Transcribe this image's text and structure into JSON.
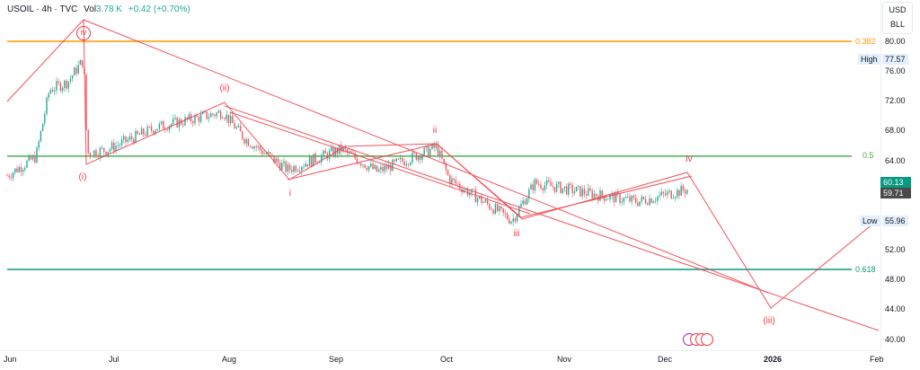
{
  "legend": {
    "symbol": "USOIL · 4h · TVC",
    "vol_label": "Vol",
    "vol_value": "3.78 K",
    "change": "+0.42 (+0.70%)"
  },
  "currency_box": {
    "currency": "USD",
    "unit": "BLL"
  },
  "price_axis": {
    "ticks": [
      "80.00",
      "76.00",
      "72.00",
      "68.00",
      "64.00",
      "52.00",
      "48.00",
      "44.00",
      "40.00"
    ],
    "high_label": "High",
    "high_value": "77.57",
    "low_label": "Low",
    "low_value": "55.96",
    "last_price": "60.13",
    "prev_price": "59.71"
  },
  "time_axis": {
    "ticks": [
      "Jun",
      "Jul",
      "Aug",
      "Sep",
      "Oct",
      "Nov",
      "Dec",
      "2026",
      "Feb"
    ]
  },
  "fib_levels": [
    {
      "label": "0.382",
      "price": 80.0,
      "color": "#ff9800"
    },
    {
      "label": "0.5",
      "price": 64.6,
      "color": "#4caf50"
    },
    {
      "label": "0.618",
      "price": 49.4,
      "color": "#089981"
    }
  ],
  "waves": {
    "iv_circ": "iv",
    "i_paren": "(i)",
    "ii_paren": "(ii)",
    "i": "i",
    "ii": "ii",
    "iii": "iii",
    "iv": "iv",
    "iii_paren": "(iii)"
  },
  "colors": {
    "up": "#22ab94",
    "down": "#f7525f",
    "drawing": "#f23645"
  },
  "chart_data": {
    "type": "candlestick",
    "title": "USOIL · 4h · TVC",
    "xlabel": "",
    "ylabel": "USD/BLL",
    "ylim": [
      40,
      80
    ],
    "x_ticks": [
      "Jun",
      "Jul",
      "Aug",
      "Sep",
      "Oct",
      "Nov",
      "Dec",
      "2026",
      "Feb"
    ],
    "y_ticks": [
      40,
      44,
      48,
      52,
      56,
      60,
      64,
      68,
      72,
      76,
      80
    ],
    "approx_close_path": [
      {
        "t": "Jun early",
        "price": 62.0
      },
      {
        "t": "Jun mid",
        "price": 64.5
      },
      {
        "t": "Jun 13",
        "price": 73.5
      },
      {
        "t": "Jun 20",
        "price": 74.5
      },
      {
        "t": "Jun 23 high",
        "price": 77.57
      },
      {
        "t": "Jun 24",
        "price": 65.0
      },
      {
        "t": "Jul early",
        "price": 65.5
      },
      {
        "t": "Jul mid",
        "price": 68.5
      },
      {
        "t": "Jul end",
        "price": 70.5
      },
      {
        "t": "Aug early",
        "price": 67.0
      },
      {
        "t": "Aug mid",
        "price": 62.8
      },
      {
        "t": "Sep early",
        "price": 65.5
      },
      {
        "t": "Sep mid",
        "price": 62.5
      },
      {
        "t": "Sep end",
        "price": 65.8
      },
      {
        "t": "Oct early",
        "price": 61.5
      },
      {
        "t": "Oct 20 low",
        "price": 55.96
      },
      {
        "t": "Oct end",
        "price": 61.0
      },
      {
        "t": "Nov",
        "price": 59.5
      },
      {
        "t": "Dec early",
        "price": 58.5
      },
      {
        "t": "Dec 9",
        "price": 60.13
      }
    ],
    "last": 60.13,
    "high": 77.57,
    "low": 55.96,
    "fib_levels": {
      "0.382": 80.0,
      "0.5": 64.6,
      "0.618": 49.4
    },
    "elliott_projection": [
      "iv ~63",
      "(iii) ~44.5",
      "then up to ~57"
    ],
    "grid": false,
    "legend_position": "top-left"
  }
}
